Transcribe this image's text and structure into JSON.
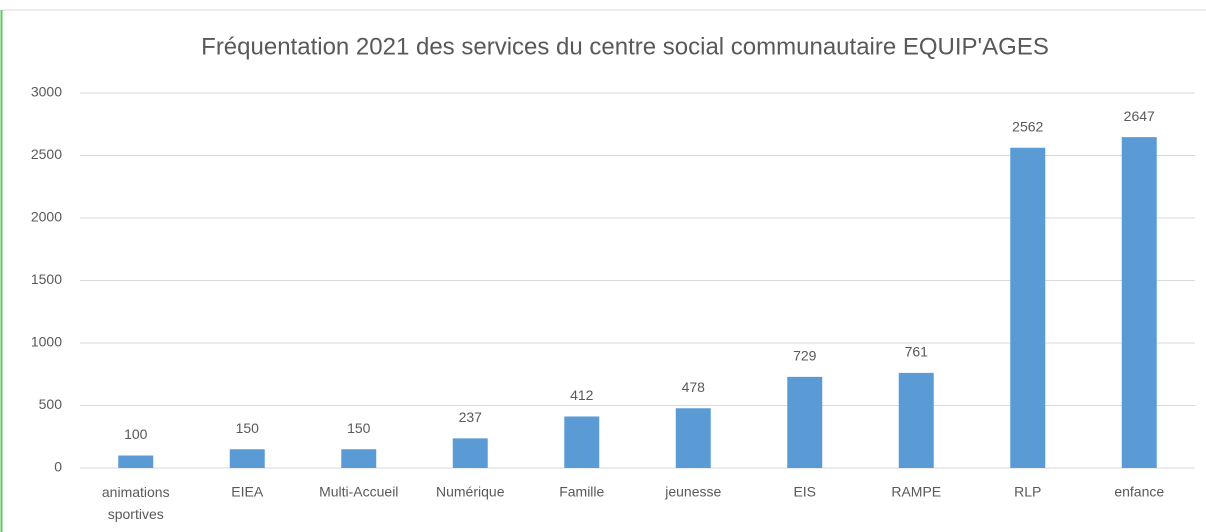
{
  "chart_data": {
    "type": "bar",
    "title": "Fréquentation 2021 des services du centre social communautaire EQUIP'AGES",
    "categories": [
      "animations sportives",
      "EIEA",
      "Multi-Accueil",
      "Numérique",
      "Famille",
      "jeunesse",
      "EIS",
      "RAMPE",
      "RLP",
      "enfance"
    ],
    "values": [
      100,
      150,
      150,
      237,
      412,
      478,
      729,
      761,
      2562,
      2647
    ],
    "color": "#5b9bd5",
    "ylim": [
      0,
      3000
    ],
    "yticks": [
      0,
      500,
      1000,
      1500,
      2000,
      2500,
      3000
    ],
    "grid": true
  }
}
